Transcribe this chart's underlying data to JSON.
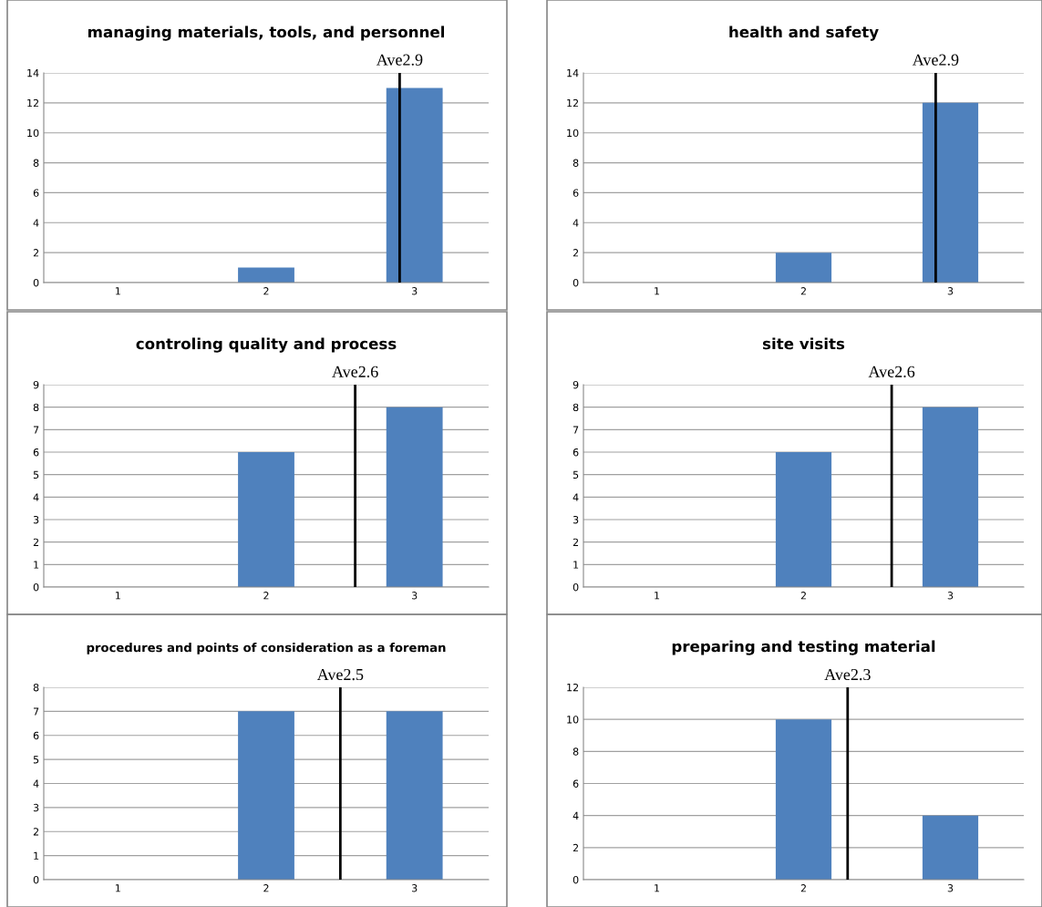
{
  "chart_data": [
    {
      "type": "bar",
      "title": "managing materials, tools, and personnel",
      "x": [
        1,
        2,
        3
      ],
      "values": [
        0,
        1,
        13
      ],
      "color": "#4f81bd",
      "xlim": [
        0.5,
        3.5
      ],
      "xticks": [
        1,
        2,
        3
      ],
      "ylim": [
        0,
        14
      ],
      "yticks": [
        0,
        2,
        4,
        6,
        8,
        10,
        12,
        14
      ],
      "grid": "y",
      "ref_lines": [
        {
          "axis": "x",
          "value": 2.9,
          "label": "Ave2.9",
          "color": "#000000"
        }
      ]
    },
    {
      "type": "bar",
      "title": "health and safety",
      "x": [
        1,
        2,
        3
      ],
      "values": [
        0,
        2,
        12
      ],
      "color": "#4f81bd",
      "xlim": [
        0.5,
        3.5
      ],
      "xticks": [
        1,
        2,
        3
      ],
      "ylim": [
        0,
        14
      ],
      "yticks": [
        0,
        2,
        4,
        6,
        8,
        10,
        12,
        14
      ],
      "grid": "y",
      "ref_lines": [
        {
          "axis": "x",
          "value": 2.9,
          "label": "Ave2.9",
          "color": "#000000"
        }
      ]
    },
    {
      "type": "bar",
      "title": "controling quality and process",
      "x": [
        1,
        2,
        3
      ],
      "values": [
        0,
        6,
        8
      ],
      "color": "#4f81bd",
      "xlim": [
        0.5,
        3.5
      ],
      "xticks": [
        1,
        2,
        3
      ],
      "ylim": [
        0,
        9
      ],
      "yticks": [
        0,
        1,
        2,
        3,
        4,
        5,
        6,
        7,
        8,
        9
      ],
      "grid": "y",
      "ref_lines": [
        {
          "axis": "x",
          "value": 2.6,
          "label": "Ave2.6",
          "color": "#000000"
        }
      ]
    },
    {
      "type": "bar",
      "title": "site visits",
      "x": [
        1,
        2,
        3
      ],
      "values": [
        0,
        6,
        8
      ],
      "color": "#4f81bd",
      "xlim": [
        0.5,
        3.5
      ],
      "xticks": [
        1,
        2,
        3
      ],
      "ylim": [
        0,
        9
      ],
      "yticks": [
        0,
        1,
        2,
        3,
        4,
        5,
        6,
        7,
        8,
        9
      ],
      "grid": "y",
      "ref_lines": [
        {
          "axis": "x",
          "value": 2.6,
          "label": "Ave2.6",
          "color": "#000000"
        }
      ]
    },
    {
      "type": "bar",
      "title": "procedures and points of consideration as a foreman",
      "x": [
        1,
        2,
        3
      ],
      "values": [
        0,
        7,
        7
      ],
      "color": "#4f81bd",
      "xlim": [
        0.5,
        3.5
      ],
      "xticks": [
        1,
        2,
        3
      ],
      "ylim": [
        0,
        8
      ],
      "yticks": [
        0,
        1,
        2,
        3,
        4,
        5,
        6,
        7,
        8
      ],
      "grid": "y",
      "ref_lines": [
        {
          "axis": "x",
          "value": 2.5,
          "label": "Ave2.5",
          "color": "#000000"
        }
      ]
    },
    {
      "type": "bar",
      "title": "preparing and testing material",
      "x": [
        1,
        2,
        3
      ],
      "values": [
        0,
        10,
        4
      ],
      "color": "#4f81bd",
      "xlim": [
        0.5,
        3.5
      ],
      "xticks": [
        1,
        2,
        3
      ],
      "ylim": [
        0,
        12
      ],
      "yticks": [
        0,
        2,
        4,
        6,
        8,
        10,
        12
      ],
      "grid": "y",
      "ref_lines": [
        {
          "axis": "x",
          "value": 2.3,
          "label": "Ave2.3",
          "color": "#000000"
        }
      ]
    }
  ]
}
